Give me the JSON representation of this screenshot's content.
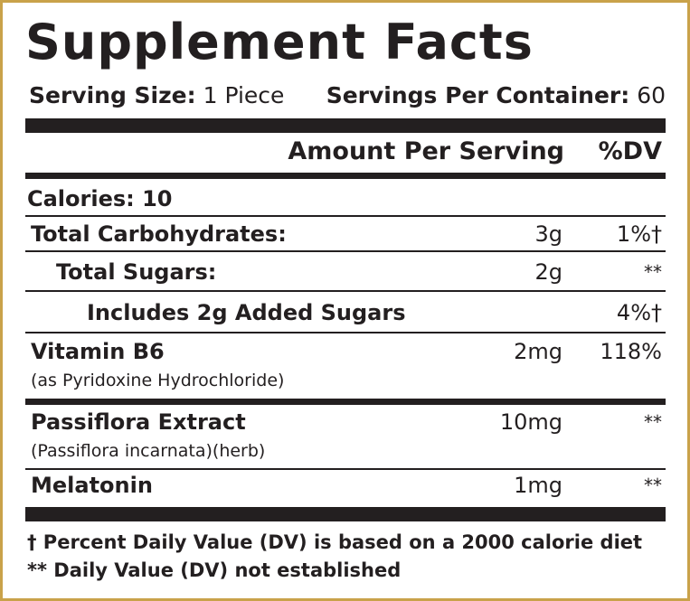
{
  "label": {
    "title": "Supplement Facts",
    "serving_size_label": "Serving Size:",
    "serving_size_value": "1 Piece",
    "servings_per_container_label": "Servings Per Container:",
    "servings_per_container_value": "60",
    "header_amount": "Amount Per Serving",
    "header_dv": "%DV",
    "calories": "Calories: 10",
    "rows": [
      {
        "name": "Total Carbohydrates:",
        "amount": "3g",
        "dv": "1%†"
      },
      {
        "name": "Total Sugars:",
        "amount": "2g",
        "dv": "**"
      },
      {
        "name": "Includes 2g Added Sugars",
        "amount": "",
        "dv": "4%†"
      },
      {
        "name": "Vitamin B6",
        "sub": "(as Pyridoxine Hydrochloride)",
        "amount": "2mg",
        "dv": "118%"
      },
      {
        "name": "Passiflora Extract",
        "sub": "(Passiflora incarnata)(herb)",
        "amount": "10mg",
        "dv": "**"
      },
      {
        "name": "Melatonin",
        "amount": "1mg",
        "dv": "**"
      }
    ],
    "footnote_1": "† Percent Daily Value (DV) is based on a 2000 calorie diet",
    "footnote_2": "** Daily Value (DV) not established"
  },
  "colors": {
    "border": "#c9a24a",
    "text": "#231f20"
  }
}
